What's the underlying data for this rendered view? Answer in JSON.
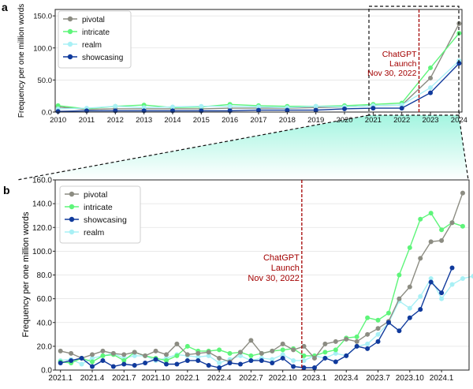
{
  "colors": {
    "pivotal": "#8c8c82",
    "intricate": "#5ef57a",
    "realm": "#a8f0f5",
    "showcasing": "#103a9c",
    "launch": "#a30000",
    "gradient_top": "#8cf2d8",
    "gradient_bottom": "#ffffff"
  },
  "chart_data": [
    {
      "panel_label": "a",
      "type": "line",
      "ylabel": "Frequency per one million words",
      "x": [
        2010,
        2011,
        2012,
        2013,
        2014,
        2015,
        2016,
        2017,
        2018,
        2019,
        2020,
        2021,
        2022,
        2023,
        2024
      ],
      "tick_labels": [
        "2010",
        "2011",
        "2012",
        "2013",
        "2014",
        "2015",
        "2016",
        "2017",
        "2018",
        "2019",
        "2020",
        "2021",
        "2022",
        "2023",
        "2024"
      ],
      "ylim": [
        0,
        160
      ],
      "yticks": [
        0,
        50,
        100,
        150
      ],
      "ytick_labels": [
        "0.0",
        "50.0",
        "100.0",
        "150.0"
      ],
      "legend": [
        "pivotal",
        "intricate",
        "realm",
        "showcasing"
      ],
      "legend_position": "top-left",
      "series": [
        {
          "name": "pivotal",
          "values": [
            8,
            4,
            5,
            5,
            5,
            5,
            6,
            6,
            6,
            7,
            8,
            10,
            11,
            53,
            138
          ]
        },
        {
          "name": "intricate",
          "values": [
            10,
            5,
            9,
            11,
            7,
            8,
            12,
            10,
            9,
            9,
            10,
            12,
            14,
            69,
            123
          ]
        },
        {
          "name": "realm",
          "values": [
            5,
            6,
            9,
            7,
            8,
            9,
            9,
            8,
            7,
            9,
            8,
            10,
            11,
            38,
            80
          ]
        },
        {
          "name": "showcasing",
          "values": [
            1,
            2,
            2,
            2,
            2,
            2,
            2,
            3,
            3,
            3,
            5,
            6,
            6,
            30,
            76
          ]
        }
      ],
      "annotation": {
        "lines": [
          "ChatGPT",
          "Launch",
          "Nov 30, 2022"
        ],
        "x": 2022.6
      }
    },
    {
      "panel_label": "b",
      "type": "line",
      "ylabel": "Frequency per one million words",
      "tick_labels": [
        "2021.1",
        "2021.4",
        "2021.7",
        "2021.10",
        "2022.1",
        "2022.4",
        "2022.7",
        "2022.10",
        "2023.1",
        "2023.4",
        "2023.7",
        "2023.10",
        "2024.1"
      ],
      "tick_positions": [
        0,
        3,
        6,
        9,
        12,
        15,
        18,
        21,
        24,
        27,
        30,
        33,
        36
      ],
      "ylim": [
        0,
        160
      ],
      "yticks": [
        0,
        20,
        40,
        60,
        80,
        100,
        120,
        140,
        160
      ],
      "ytick_labels": [
        "0.0",
        "20.0",
        "40.0",
        "60.0",
        "80.0",
        "100.0",
        "120.0",
        "140.0",
        "160.0"
      ],
      "legend": [
        "pivotal",
        "intricate",
        "showcasing",
        "realm"
      ],
      "legend_position": "top-left",
      "series": [
        {
          "name": "realm",
          "values": [
            8,
            9,
            5,
            10,
            12,
            14,
            10,
            12,
            12,
            8,
            10,
            13,
            12,
            11,
            12,
            6,
            9,
            12,
            8,
            10,
            9,
            13,
            8,
            8,
            12,
            10,
            14,
            12,
            20,
            22,
            30,
            40,
            58,
            52,
            62,
            77,
            60,
            72,
            77,
            79
          ]
        },
        {
          "name": "intricate",
          "values": [
            7,
            6,
            10,
            7,
            12,
            13,
            8,
            15,
            12,
            10,
            8,
            12,
            20,
            16,
            16,
            17,
            14,
            15,
            12,
            14,
            16,
            17,
            18,
            12,
            12,
            15,
            17,
            27,
            28,
            44,
            42,
            48,
            80,
            103,
            127,
            132,
            118,
            124,
            121
          ]
        },
        {
          "name": "pivotal",
          "values": [
            16,
            14,
            10,
            13,
            16,
            14,
            13,
            15,
            12,
            16,
            13,
            22,
            13,
            14,
            15,
            10,
            7,
            15,
            25,
            14,
            16,
            22,
            17,
            20,
            10,
            22,
            24,
            26,
            24,
            30,
            35,
            41,
            60,
            70,
            94,
            108,
            109,
            124,
            149
          ]
        },
        {
          "name": "showcasing",
          "values": [
            6,
            8,
            10,
            3,
            8,
            3,
            5,
            4,
            6,
            9,
            5,
            5,
            8,
            8,
            4,
            2,
            6,
            5,
            8,
            8,
            6,
            10,
            3,
            2,
            2,
            10,
            7,
            12,
            20,
            18,
            24,
            40,
            33,
            44,
            51,
            74,
            65,
            86
          ]
        }
      ],
      "annotation": {
        "lines": [
          "ChatGPT",
          "Launch",
          "Nov 30, 2022"
        ],
        "x": 22.8
      }
    }
  ]
}
